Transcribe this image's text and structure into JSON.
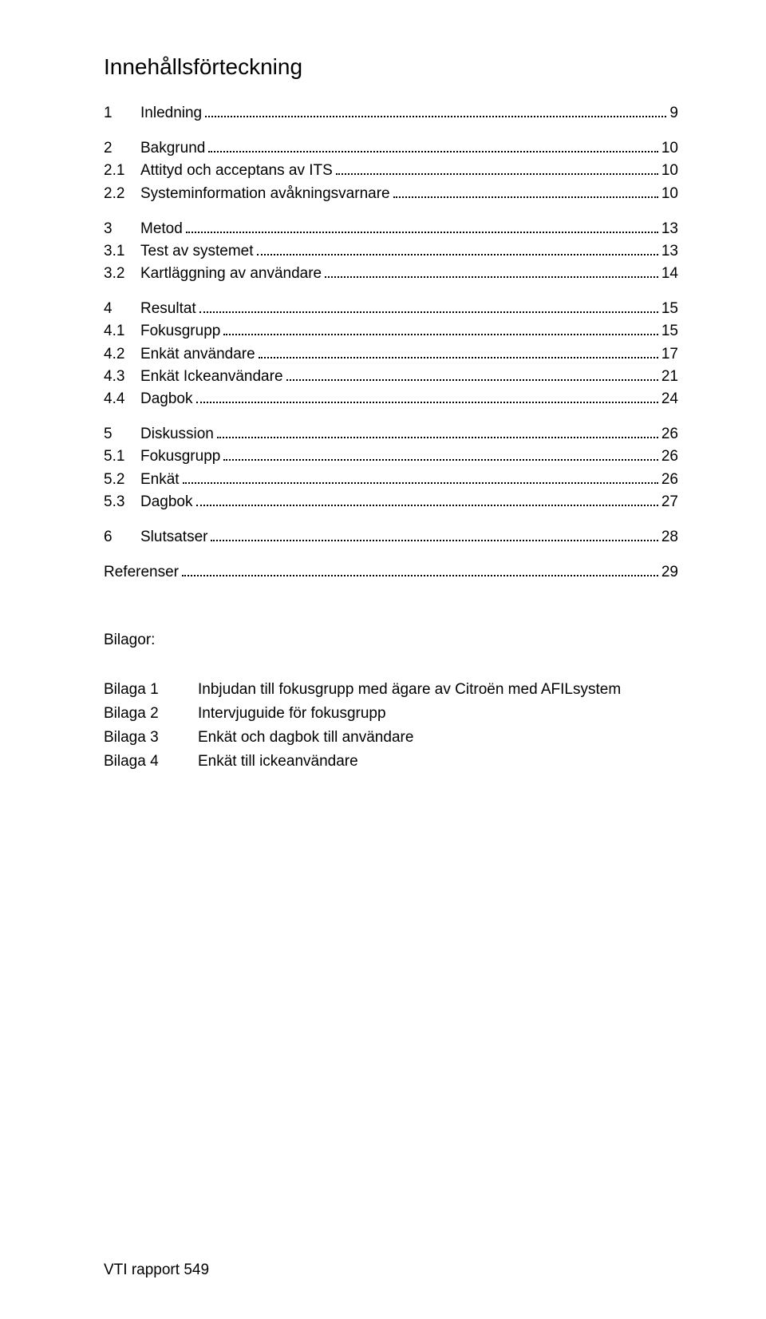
{
  "title": "Innehållsförteckning",
  "toc": [
    {
      "type": "entry",
      "level": 1,
      "num": "1",
      "label": "Inledning",
      "page": "9"
    },
    {
      "type": "blank"
    },
    {
      "type": "entry",
      "level": 1,
      "num": "2",
      "label": "Bakgrund",
      "page": "10"
    },
    {
      "type": "entry",
      "level": 2,
      "num": "2.1",
      "label": "Attityd och acceptans av ITS",
      "page": "10"
    },
    {
      "type": "entry",
      "level": 2,
      "num": "2.2",
      "label": "Systeminformation avåkningsvarnare",
      "page": "10"
    },
    {
      "type": "blank"
    },
    {
      "type": "entry",
      "level": 1,
      "num": "3",
      "label": "Metod",
      "page": "13"
    },
    {
      "type": "entry",
      "level": 2,
      "num": "3.1",
      "label": "Test av systemet",
      "page": "13"
    },
    {
      "type": "entry",
      "level": 2,
      "num": "3.2",
      "label": "Kartläggning av användare",
      "page": "14"
    },
    {
      "type": "blank"
    },
    {
      "type": "entry",
      "level": 1,
      "num": "4",
      "label": "Resultat",
      "page": "15"
    },
    {
      "type": "entry",
      "level": 2,
      "num": "4.1",
      "label": "Fokusgrupp",
      "page": "15"
    },
    {
      "type": "entry",
      "level": 2,
      "num": "4.2",
      "label": "Enkät användare",
      "page": "17"
    },
    {
      "type": "entry",
      "level": 2,
      "num": "4.3",
      "label": "Enkät Ickeanvändare",
      "page": "21"
    },
    {
      "type": "entry",
      "level": 2,
      "num": "4.4",
      "label": "Dagbok",
      "page": "24"
    },
    {
      "type": "blank"
    },
    {
      "type": "entry",
      "level": 1,
      "num": "5",
      "label": "Diskussion",
      "page": "26"
    },
    {
      "type": "entry",
      "level": 2,
      "num": "5.1",
      "label": "Fokusgrupp",
      "page": "26"
    },
    {
      "type": "entry",
      "level": 2,
      "num": "5.2",
      "label": "Enkät",
      "page": "26"
    },
    {
      "type": "entry",
      "level": 2,
      "num": "5.3",
      "label": "Dagbok",
      "page": "27"
    },
    {
      "type": "blank"
    },
    {
      "type": "entry",
      "level": 1,
      "num": "6",
      "label": "Slutsatser",
      "page": "28"
    },
    {
      "type": "blank"
    },
    {
      "type": "entry",
      "level": 0,
      "num": "",
      "label": "Referenser",
      "page": "29"
    }
  ],
  "attachments_heading": "Bilagor:",
  "attachments": [
    {
      "key": "Bilaga 1",
      "val": "Inbjudan till fokusgrupp med ägare av Citroën med AFILsystem"
    },
    {
      "key": "Bilaga 2",
      "val": "Intervjuguide för fokusgrupp"
    },
    {
      "key": "Bilaga 3",
      "val": "Enkät och dagbok till användare"
    },
    {
      "key": "Bilaga 4",
      "val": "Enkät till ickeanvändare"
    }
  ],
  "footer": "VTI rapport 549"
}
